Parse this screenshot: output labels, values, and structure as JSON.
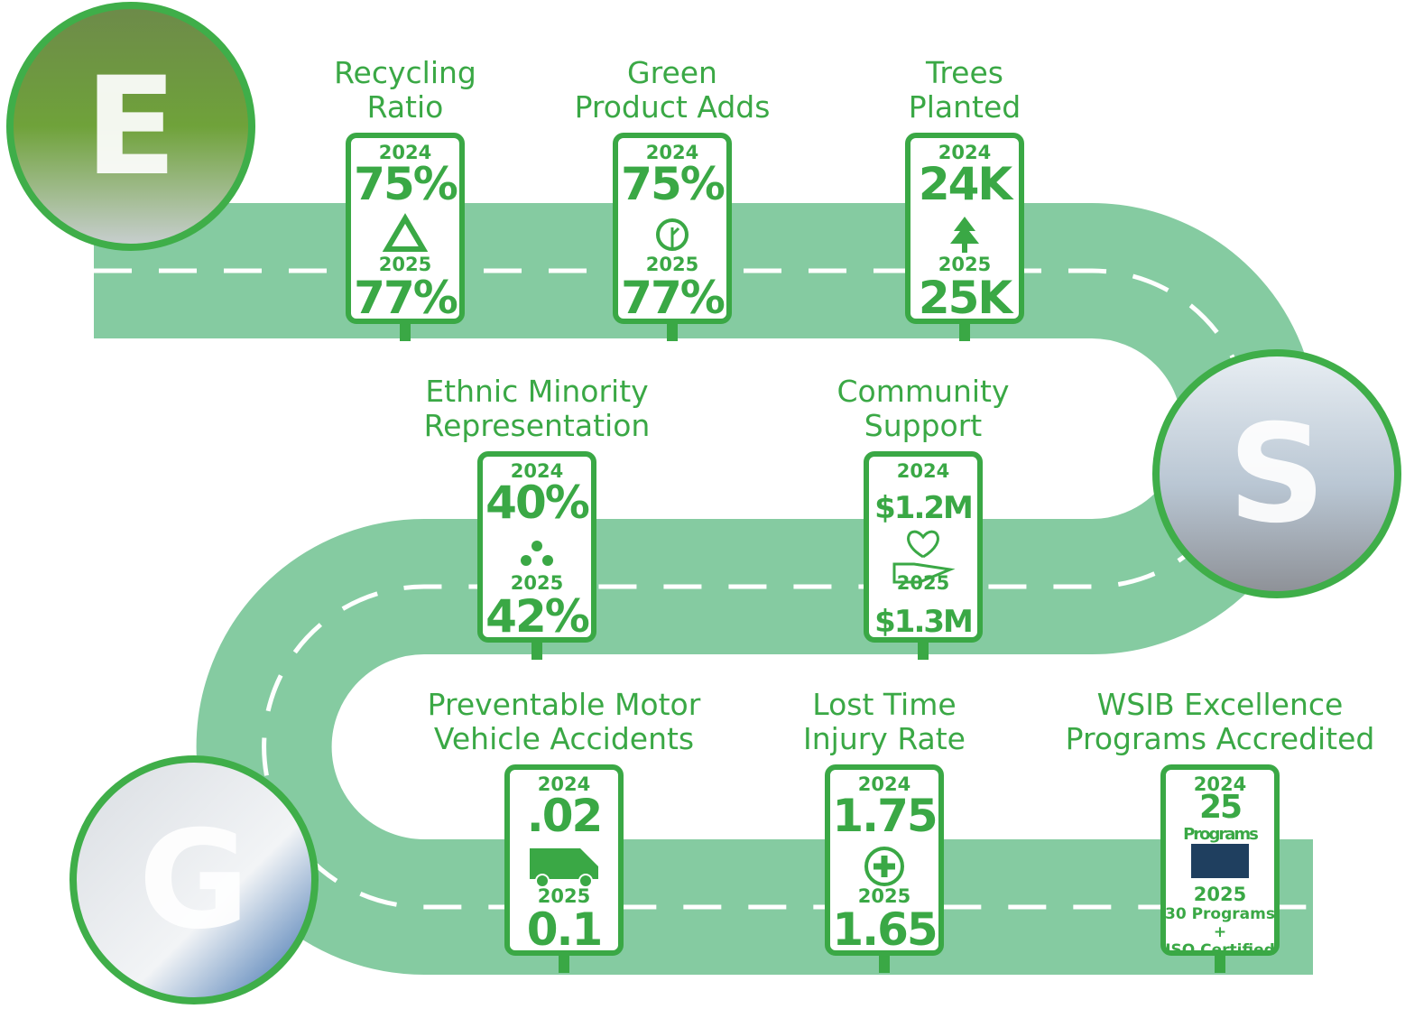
{
  "pillars": [
    {
      "letter": "E"
    },
    {
      "letter": "S"
    },
    {
      "letter": "G"
    }
  ],
  "metrics": [
    {
      "title_lines": [
        "Recycling",
        "Ratio"
      ],
      "year_a": "2024",
      "value_a": [
        "75%"
      ],
      "year_b": "2025",
      "value_b": [
        "77%"
      ]
    },
    {
      "title_lines": [
        "Green",
        "Product Adds"
      ],
      "year_a": "2024",
      "value_a": [
        "75%"
      ],
      "year_b": "2025",
      "value_b": [
        "77%"
      ]
    },
    {
      "title_lines": [
        "Trees",
        "Planted"
      ],
      "year_a": "2024",
      "value_a": [
        "24K"
      ],
      "year_b": "2025",
      "value_b": [
        "25K"
      ]
    },
    {
      "title_lines": [
        "Ethnic Minority",
        "Representation"
      ],
      "year_a": "2024",
      "value_a": [
        "40%"
      ],
      "year_b": "2025",
      "value_b": [
        "42%"
      ]
    },
    {
      "title_lines": [
        "Community",
        "Support"
      ],
      "year_a": "2024",
      "value_a": [
        "$1.2M"
      ],
      "year_b": "2025",
      "value_b": [
        "$1.3M"
      ]
    },
    {
      "title_lines": [
        "Preventable Motor",
        "Vehicle Accidents"
      ],
      "year_a": "2024",
      "value_a": [
        ".02"
      ],
      "year_b": "2025",
      "value_b": [
        "0.1"
      ]
    },
    {
      "title_lines": [
        "Lost Time",
        "Injury Rate"
      ],
      "year_a": "2024",
      "value_a": [
        "1.75"
      ],
      "year_b": "2025",
      "value_b": [
        "1.65"
      ]
    },
    {
      "title_lines": [
        "WSIB Excellence",
        "Programs Accredited"
      ],
      "year_a": "2024",
      "value_a": [
        "25",
        "Programs"
      ],
      "year_b": "2025",
      "value_b": [
        "30 Programs",
        "+",
        "ISO Certified"
      ]
    }
  ]
}
